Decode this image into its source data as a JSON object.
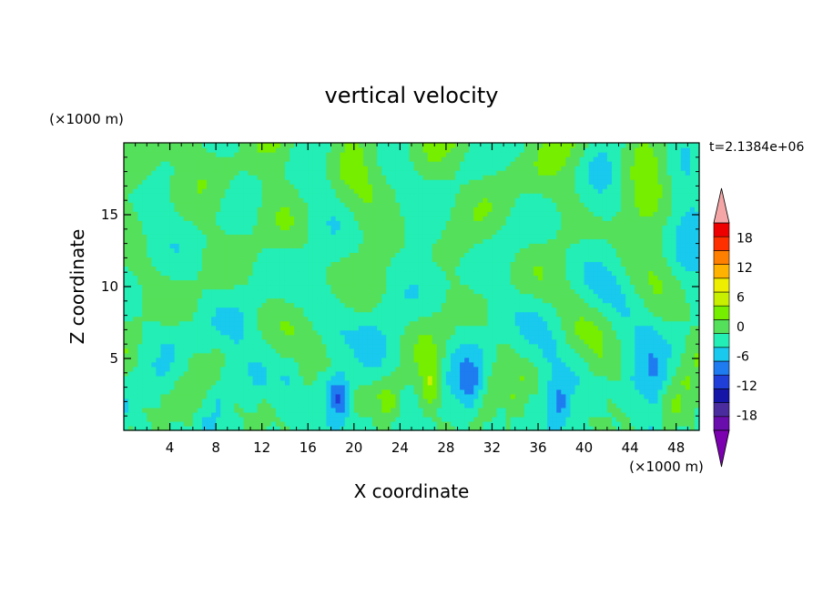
{
  "chart_data": {
    "type": "heatmap",
    "title": "vertical velocity",
    "xlabel": "X coordinate",
    "ylabel": "Z coordinate",
    "x_unit": "(×1000 m)",
    "y_unit": "(×1000 m)",
    "annotation": "t=2.1384e+06",
    "xlim": [
      0,
      50
    ],
    "ylim": [
      0,
      20
    ],
    "x_ticks": [
      4,
      8,
      12,
      16,
      20,
      24,
      28,
      32,
      36,
      40,
      44,
      48
    ],
    "y_ticks": [
      5,
      10,
      15
    ],
    "colorbar": {
      "levels": [
        -21,
        -18,
        -15,
        -12,
        -9,
        -6,
        -3,
        0,
        3,
        6,
        9,
        12,
        15,
        18,
        21
      ],
      "tick_labels": [
        "18",
        "12",
        "6",
        "0",
        "-6",
        "-12",
        "-18"
      ],
      "tick_values": [
        18,
        12,
        6,
        0,
        -6,
        -12,
        -18
      ],
      "colors": [
        "#6a0dad",
        "#4b2c9f",
        "#1515a8",
        "#1f3fd8",
        "#1e7bf0",
        "#19c9ee",
        "#22eeb5",
        "#55e05b",
        "#76ee00",
        "#c8ee00",
        "#eeee00",
        "#ffb300",
        "#ff8000",
        "#ff3000",
        "#ee0000"
      ],
      "under_color": "#7c00b0",
      "over_color": "#f4a6a6"
    },
    "features": [
      {
        "x": 0.8,
        "z": 3.8,
        "w": 0.6
      },
      {
        "x": 2.5,
        "z": 1.4,
        "w": 1.2
      },
      {
        "x": 5.5,
        "z": 1.2,
        "w": 2.4
      },
      {
        "x": 8.0,
        "z": 3.0,
        "w": -1.5
      },
      {
        "x": 11.0,
        "z": 4.0,
        "w": -1.0
      },
      {
        "x": 13.5,
        "z": 1.5,
        "w": 0.8
      },
      {
        "x": 15.5,
        "z": 2.8,
        "w": 1.8
      },
      {
        "x": 18.6,
        "z": 2.5,
        "w": -10.5
      },
      {
        "x": 20.5,
        "z": 5.0,
        "w": 0.9
      },
      {
        "x": 22.8,
        "z": 2.3,
        "w": 6.0
      },
      {
        "x": 25.0,
        "z": 5.0,
        "w": -1.0
      },
      {
        "x": 26.8,
        "z": 2.8,
        "w": 7.0
      },
      {
        "x": 30.0,
        "z": 3.2,
        "w": -4.0
      },
      {
        "x": 31.5,
        "z": 1.2,
        "w": 0.6
      },
      {
        "x": 34.0,
        "z": 1.5,
        "w": 1.5
      },
      {
        "x": 36.0,
        "z": 4.0,
        "w": 1.0
      },
      {
        "x": 37.8,
        "z": 2.0,
        "w": -5.0
      },
      {
        "x": 40.0,
        "z": 4.0,
        "w": -1.0
      },
      {
        "x": 42.0,
        "z": 3.5,
        "w": 1.0
      },
      {
        "x": 43.5,
        "z": 1.2,
        "w": 1.8
      },
      {
        "x": 46.0,
        "z": 3.5,
        "w": -4.0
      },
      {
        "x": 48.0,
        "z": 1.2,
        "w": 0.8
      },
      {
        "x": 49.5,
        "z": 5.0,
        "w": 1.2
      }
    ]
  }
}
